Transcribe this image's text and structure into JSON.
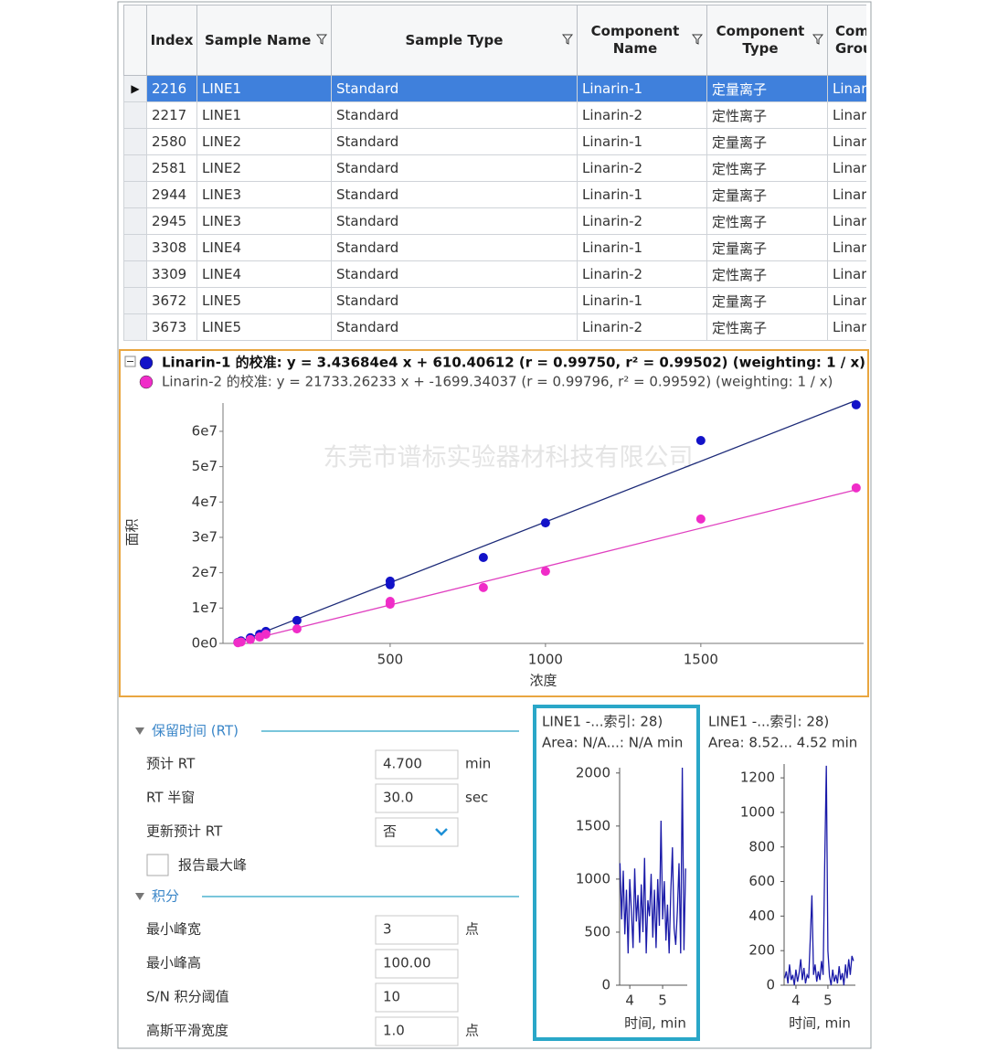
{
  "table": {
    "columns": [
      "Index",
      "Sample Name",
      "Sample Type",
      "Component Name",
      "Component Type",
      "Component Group"
    ],
    "selected_row": 0,
    "rows": [
      [
        2216,
        "LINE1",
        "Standard",
        "Linarin-1",
        "定量离子",
        "Linarin"
      ],
      [
        2217,
        "LINE1",
        "Standard",
        "Linarin-2",
        "定性离子",
        "Linarin"
      ],
      [
        2580,
        "LINE2",
        "Standard",
        "Linarin-1",
        "定量离子",
        "Linarin"
      ],
      [
        2581,
        "LINE2",
        "Standard",
        "Linarin-2",
        "定性离子",
        "Linarin"
      ],
      [
        2944,
        "LINE3",
        "Standard",
        "Linarin-1",
        "定量离子",
        "Linarin"
      ],
      [
        2945,
        "LINE3",
        "Standard",
        "Linarin-2",
        "定性离子",
        "Linarin"
      ],
      [
        3308,
        "LINE4",
        "Standard",
        "Linarin-1",
        "定量离子",
        "Linarin"
      ],
      [
        3309,
        "LINE4",
        "Standard",
        "Linarin-2",
        "定性离子",
        "Linarin"
      ],
      [
        3672,
        "LINE5",
        "Standard",
        "Linarin-1",
        "定量离子",
        "Linarin"
      ],
      [
        3673,
        "LINE5",
        "Standard",
        "Linarin-2",
        "定性离子",
        "Linarin"
      ]
    ]
  },
  "calibration": {
    "type": "scatter",
    "x_label": "浓度",
    "y_label": "面积",
    "watermark": "东莞市谱标实验器材科技有限公司",
    "xlim": [
      -38,
      2024
    ],
    "xticks": [
      500,
      1000,
      1500
    ],
    "ylim": [
      0,
      68000000
    ],
    "yticks": [
      {
        "value": 0,
        "label": "0e0"
      },
      {
        "value": 10000000,
        "label": "1e7"
      },
      {
        "value": 20000000,
        "label": "2e7"
      },
      {
        "value": 30000000,
        "label": "3e7"
      },
      {
        "value": 40000000,
        "label": "4e7"
      },
      {
        "value": 50000000,
        "label": "5e7"
      },
      {
        "value": 60000000,
        "label": "6e7"
      }
    ],
    "series": [
      {
        "name": "Linarin-1 的校准:  y = 3.43684e4 x + 610.40612 (r = 0.99750, r² = 0.99502)  (weighting: 1 / x)",
        "bold": true,
        "color": "#1212c8",
        "line_color": "#1c2a78",
        "slope": 34368.4,
        "intercept": 610.40612,
        "x": [
          10,
          20,
          50,
          80,
          100,
          200,
          500,
          500,
          800,
          1000,
          1500,
          2000
        ],
        "values": [
          300000,
          700000,
          1600000,
          2600000,
          3400000,
          6500000,
          16600000,
          17600000,
          24300000,
          34100000,
          57400000,
          67500000
        ]
      },
      {
        "name": "Linarin-2 的校准:  y = 21733.26233 x + -1699.34037 (r = 0.99796, r² = 0.99592)  (weighting: 1 / x)",
        "bold": false,
        "color": "#f02cc8",
        "line_color": "#e040c0",
        "slope": 21733.26233,
        "intercept": -1699.34037,
        "x": [
          10,
          20,
          50,
          80,
          100,
          200,
          500,
          500,
          800,
          1000,
          1500,
          2000
        ],
        "values": [
          200000,
          400000,
          1100000,
          1800000,
          2600000,
          4100000,
          11100000,
          11900000,
          15800000,
          20400000,
          35200000,
          44000000
        ]
      }
    ]
  },
  "parameters": {
    "sections": [
      {
        "title": "保留时间 (RT)",
        "fields": [
          {
            "label": "预计 RT",
            "value": "4.700",
            "unit": "min"
          },
          {
            "label": "RT 半窗",
            "value": "30.0",
            "unit": "sec"
          },
          {
            "label": "更新预计 RT",
            "value": "否",
            "dropdown": true
          },
          {
            "label": "报告最大峰",
            "checkbox": true,
            "checked": false
          }
        ]
      },
      {
        "title": "积分",
        "fields": [
          {
            "label": "最小峰宽",
            "value": "3",
            "unit": "点"
          },
          {
            "label": "最小峰高",
            "value": "100.00"
          },
          {
            "label": "S/N 积分阈值",
            "value": "10"
          },
          {
            "label": "高斯平滑宽度",
            "value": "1.0",
            "unit": "点"
          }
        ]
      }
    ]
  },
  "chromatograms": [
    {
      "type": "line",
      "title": "LINE1 -...索引: 28)",
      "subtitle": "Area: N/A...: N/A min",
      "x_label": "时间, min",
      "selected": true,
      "color": "#1a1aa8",
      "xlim": [
        3.69,
        5.75
      ],
      "xticks": [
        4,
        5
      ],
      "ylim": [
        0,
        2050
      ],
      "yticks": [
        0,
        500,
        1000,
        1500,
        2000
      ],
      "x": [
        3.7,
        3.75,
        3.8,
        3.85,
        3.9,
        3.95,
        4.0,
        4.05,
        4.1,
        4.15,
        4.2,
        4.25,
        4.3,
        4.35,
        4.4,
        4.45,
        4.5,
        4.55,
        4.6,
        4.65,
        4.7,
        4.75,
        4.8,
        4.85,
        4.9,
        4.95,
        5.0,
        5.05,
        5.1,
        5.15,
        5.2,
        5.25,
        5.3,
        5.35,
        5.4,
        5.45,
        5.5,
        5.55,
        5.6,
        5.65,
        5.7
      ],
      "values": [
        1150,
        620,
        1080,
        480,
        900,
        300,
        1000,
        700,
        350,
        1100,
        600,
        850,
        400,
        950,
        500,
        1200,
        300,
        800,
        650,
        1050,
        450,
        900,
        350,
        1000,
        560,
        1550,
        620,
        980,
        420,
        760,
        300,
        880,
        1300,
        540,
        380,
        700,
        1150,
        300,
        2050,
        330,
        1100
      ]
    },
    {
      "type": "line",
      "title": "LINE1 -...索引: 28)",
      "subtitle": "Area: 8.52... 4.52 min",
      "x_label": "时间, min",
      "selected": false,
      "color": "#1a1aa8",
      "xlim": [
        3.63,
        5.86
      ],
      "xticks": [
        4,
        5
      ],
      "ylim": [
        0,
        1280
      ],
      "yticks": [
        0,
        200,
        400,
        600,
        800,
        1000,
        1200
      ],
      "x": [
        3.65,
        3.7,
        3.75,
        3.8,
        3.85,
        3.9,
        3.95,
        4.0,
        4.05,
        4.1,
        4.15,
        4.2,
        4.25,
        4.3,
        4.35,
        4.4,
        4.45,
        4.5,
        4.55,
        4.6,
        4.65,
        4.7,
        4.75,
        4.8,
        4.85,
        4.9,
        4.95,
        5.0,
        5.05,
        5.1,
        5.15,
        5.2,
        5.25,
        5.3,
        5.35,
        5.4,
        5.45,
        5.5,
        5.55,
        5.6,
        5.65,
        5.7,
        5.75,
        5.8
      ],
      "values": [
        40,
        80,
        10,
        120,
        30,
        60,
        0,
        90,
        20,
        70,
        150,
        30,
        100,
        10,
        60,
        40,
        280,
        520,
        60,
        120,
        20,
        80,
        30,
        140,
        60,
        700,
        1270,
        200,
        50,
        0,
        90,
        20,
        60,
        10,
        110,
        30,
        70,
        0,
        120,
        40,
        150,
        60,
        170,
        140
      ]
    }
  ]
}
